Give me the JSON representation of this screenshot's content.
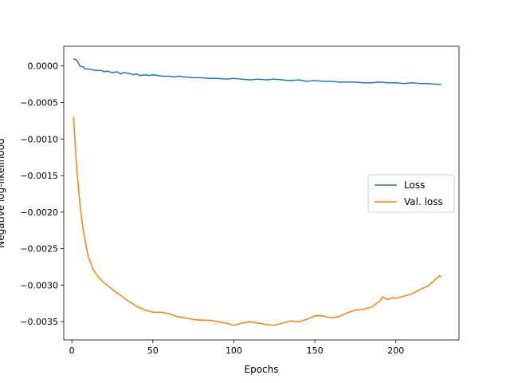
{
  "chart_data": {
    "type": "line",
    "title": "",
    "xlabel": "Epochs",
    "ylabel": "Negative log-likelihood",
    "xlim": [
      -5,
      239
    ],
    "ylim": [
      -0.00375,
      0.00027
    ],
    "xticks": [
      0,
      50,
      100,
      150,
      200
    ],
    "xtick_labels": [
      "0",
      "50",
      "100",
      "150",
      "200"
    ],
    "yticks": [
      0.0,
      -0.0005,
      -0.001,
      -0.0015,
      -0.002,
      -0.0025,
      -0.003,
      -0.0035
    ],
    "ytick_labels": [
      "0.0000",
      "−0.0005",
      "−0.0010",
      "−0.0015",
      "−0.0020",
      "−0.0025",
      "−0.0030",
      "−0.0035"
    ],
    "grid": false,
    "legend": "center-right",
    "series": [
      {
        "name": "Loss",
        "color": "#1f77b4",
        "x": [
          1,
          2,
          3,
          4,
          5,
          6,
          7,
          8,
          10,
          12,
          15,
          18,
          20,
          22,
          25,
          28,
          30,
          32,
          35,
          38,
          40,
          42,
          45,
          48,
          50,
          53,
          56,
          60,
          63,
          66,
          70,
          75,
          80,
          85,
          90,
          95,
          100,
          105,
          110,
          115,
          120,
          125,
          130,
          135,
          140,
          145,
          150,
          155,
          160,
          165,
          170,
          175,
          180,
          185,
          190,
          195,
          200,
          205,
          210,
          215,
          220,
          225,
          228
        ],
        "y": [
          0.0001,
          9e-05,
          8e-05,
          4e-05,
          0.0,
          -1e-05,
          -1e-05,
          -4e-05,
          -4e-05,
          -5e-05,
          -6e-05,
          -6e-05,
          -8e-05,
          -7e-05,
          -9e-05,
          -8e-05,
          -0.00011,
          -9e-05,
          -0.0001,
          -0.00012,
          -0.00011,
          -0.00013,
          -0.00012,
          -0.00013,
          -0.00012,
          -0.00013,
          -0.00014,
          -0.00014,
          -0.00015,
          -0.00014,
          -0.00015,
          -0.00016,
          -0.00016,
          -0.00017,
          -0.00017,
          -0.00018,
          -0.00017,
          -0.00018,
          -0.00019,
          -0.00018,
          -0.00019,
          -0.00018,
          -0.00019,
          -0.0002,
          -0.00019,
          -0.00021,
          -0.0002,
          -0.00021,
          -0.00021,
          -0.00022,
          -0.00022,
          -0.00022,
          -0.00023,
          -0.00023,
          -0.00022,
          -0.00023,
          -0.00023,
          -0.00024,
          -0.00023,
          -0.00024,
          -0.00024,
          -0.00025,
          -0.00025
        ]
      },
      {
        "name": "Val. loss",
        "color": "#ff7f0e",
        "x": [
          1,
          3,
          5,
          7,
          10,
          13,
          16,
          20,
          25,
          30,
          35,
          40,
          45,
          50,
          55,
          60,
          65,
          70,
          75,
          80,
          85,
          90,
          95,
          100,
          105,
          110,
          115,
          120,
          125,
          130,
          135,
          140,
          145,
          150,
          155,
          160,
          165,
          170,
          175,
          180,
          185,
          190,
          192,
          195,
          198,
          200,
          205,
          210,
          215,
          220,
          225,
          227,
          228
        ],
        "y": [
          -0.0007,
          -0.0014,
          -0.0019,
          -0.00225,
          -0.0026,
          -0.00278,
          -0.00288,
          -0.00297,
          -0.00306,
          -0.00314,
          -0.00322,
          -0.00329,
          -0.00334,
          -0.00337,
          -0.00337,
          -0.00339,
          -0.00343,
          -0.00345,
          -0.00347,
          -0.00348,
          -0.00348,
          -0.0035,
          -0.00352,
          -0.00355,
          -0.00352,
          -0.0035,
          -0.00352,
          -0.00354,
          -0.00355,
          -0.00352,
          -0.00349,
          -0.0035,
          -0.00347,
          -0.00342,
          -0.00342,
          -0.00345,
          -0.00343,
          -0.00338,
          -0.00334,
          -0.00333,
          -0.0033,
          -0.00322,
          -0.00316,
          -0.0032,
          -0.00317,
          -0.00318,
          -0.00315,
          -0.00312,
          -0.00306,
          -0.00301,
          -0.00291,
          -0.00287,
          -0.00289
        ]
      }
    ]
  }
}
